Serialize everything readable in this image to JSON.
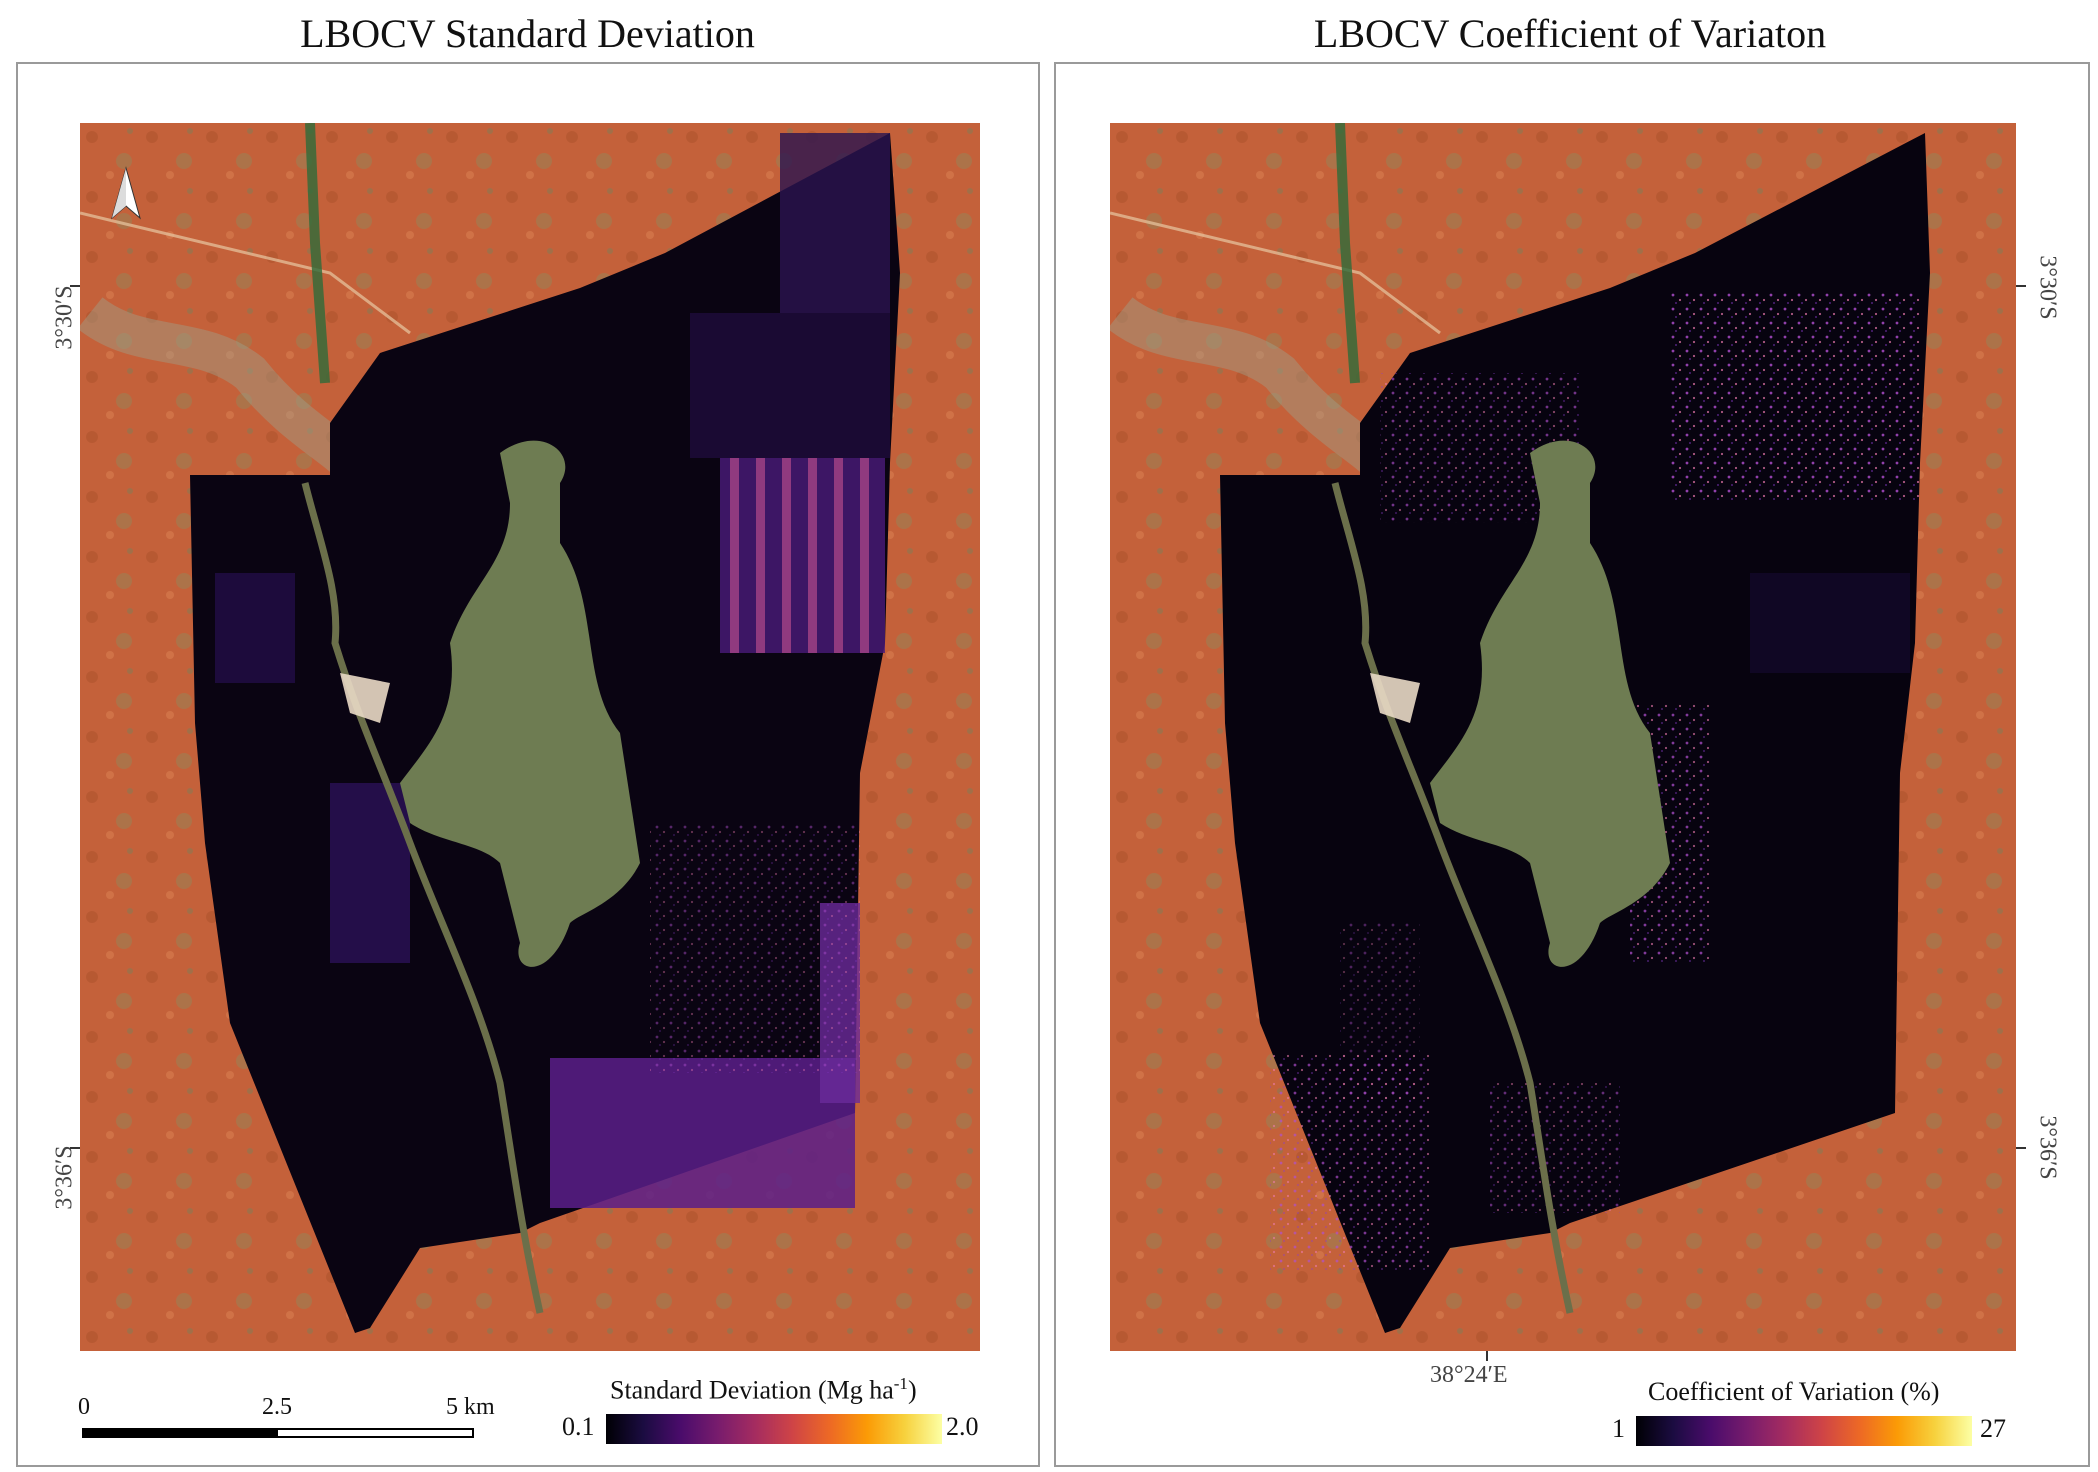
{
  "left_panel": {
    "title": "LBOCV Standard Deviation",
    "lat_top": "3°30′S",
    "lat_bottom": "3°36′S",
    "legend": {
      "title": "Standard Deviation (Mg ha",
      "title_sup": "-1",
      "title_end": ")",
      "min": "0.1",
      "max": "2.0",
      "colormap": "magma"
    },
    "scalebar": {
      "labels": [
        "0",
        "2.5",
        "5 km"
      ]
    },
    "north_arrow": "north-arrow-icon"
  },
  "right_panel": {
    "title": "LBOCV Coefficient of Variaton",
    "lat_top": "3°30′S",
    "lat_bottom": "3°36′S",
    "lon": "38°24′E",
    "legend": {
      "title": "Coefficient of Variation (%)",
      "min": "1",
      "max": "27",
      "colormap": "magma"
    }
  },
  "colors": {
    "basemap_soil": "#c4613a",
    "raster_low": "#07030f",
    "raster_mid": "#5a1f8a",
    "raster_high": "#f08aa0",
    "lake": "#6e7c52"
  }
}
